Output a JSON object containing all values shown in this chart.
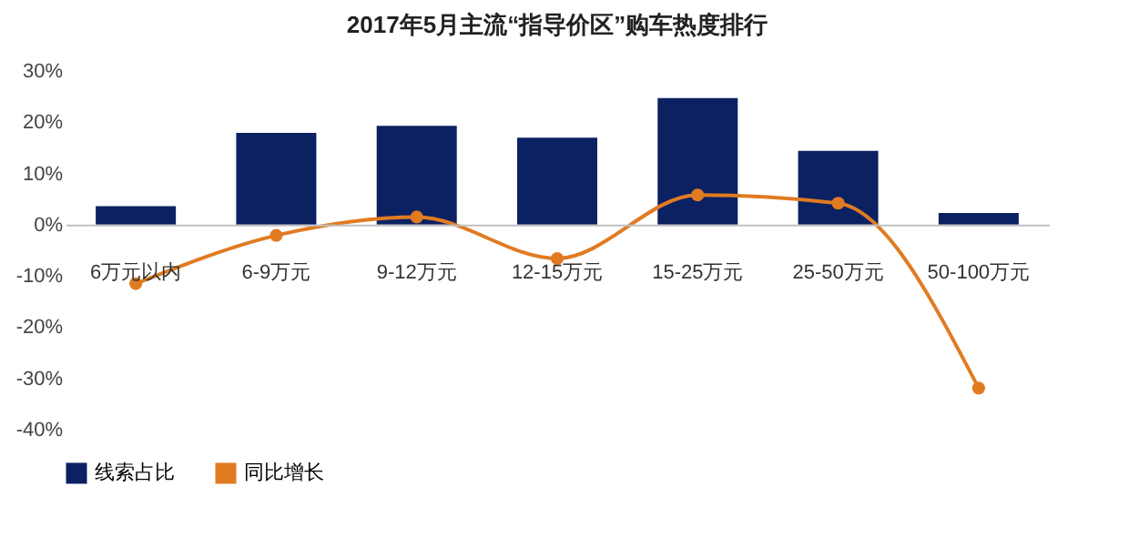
{
  "chart_data": {
    "type": "bar",
    "title": "2017年5月主流“指导价区”购车热度排行",
    "categories": [
      "6万元以内",
      "6-9万元",
      "9-12万元",
      "12-15万元",
      "15-25万元",
      "25-50万元",
      "50-100万元"
    ],
    "series": [
      {
        "name": "线索占比",
        "color": "#0b2161",
        "values": [
          3.6,
          17.9,
          19.3,
          17.0,
          24.7,
          14.4,
          2.3
        ]
      },
      {
        "name": "同比增长",
        "type": "line",
        "color": "#e07b22",
        "marker": "circle",
        "values": [
          -11.5,
          -2.1,
          1.5,
          -6.6,
          5.8,
          4.2,
          -31.9
        ]
      }
    ],
    "ylim": [
      -40,
      30
    ],
    "yticks": [
      {
        "value": -40,
        "label": "-40%"
      },
      {
        "value": -30,
        "label": "-30%"
      },
      {
        "value": -20,
        "label": "-20%"
      },
      {
        "value": -10,
        "label": "-10%"
      },
      {
        "value": 0,
        "label": "0%"
      },
      {
        "value": 10,
        "label": "10%"
      },
      {
        "value": 20,
        "label": "20%"
      },
      {
        "value": 30,
        "label": "30%"
      }
    ],
    "legend": "bottom"
  }
}
